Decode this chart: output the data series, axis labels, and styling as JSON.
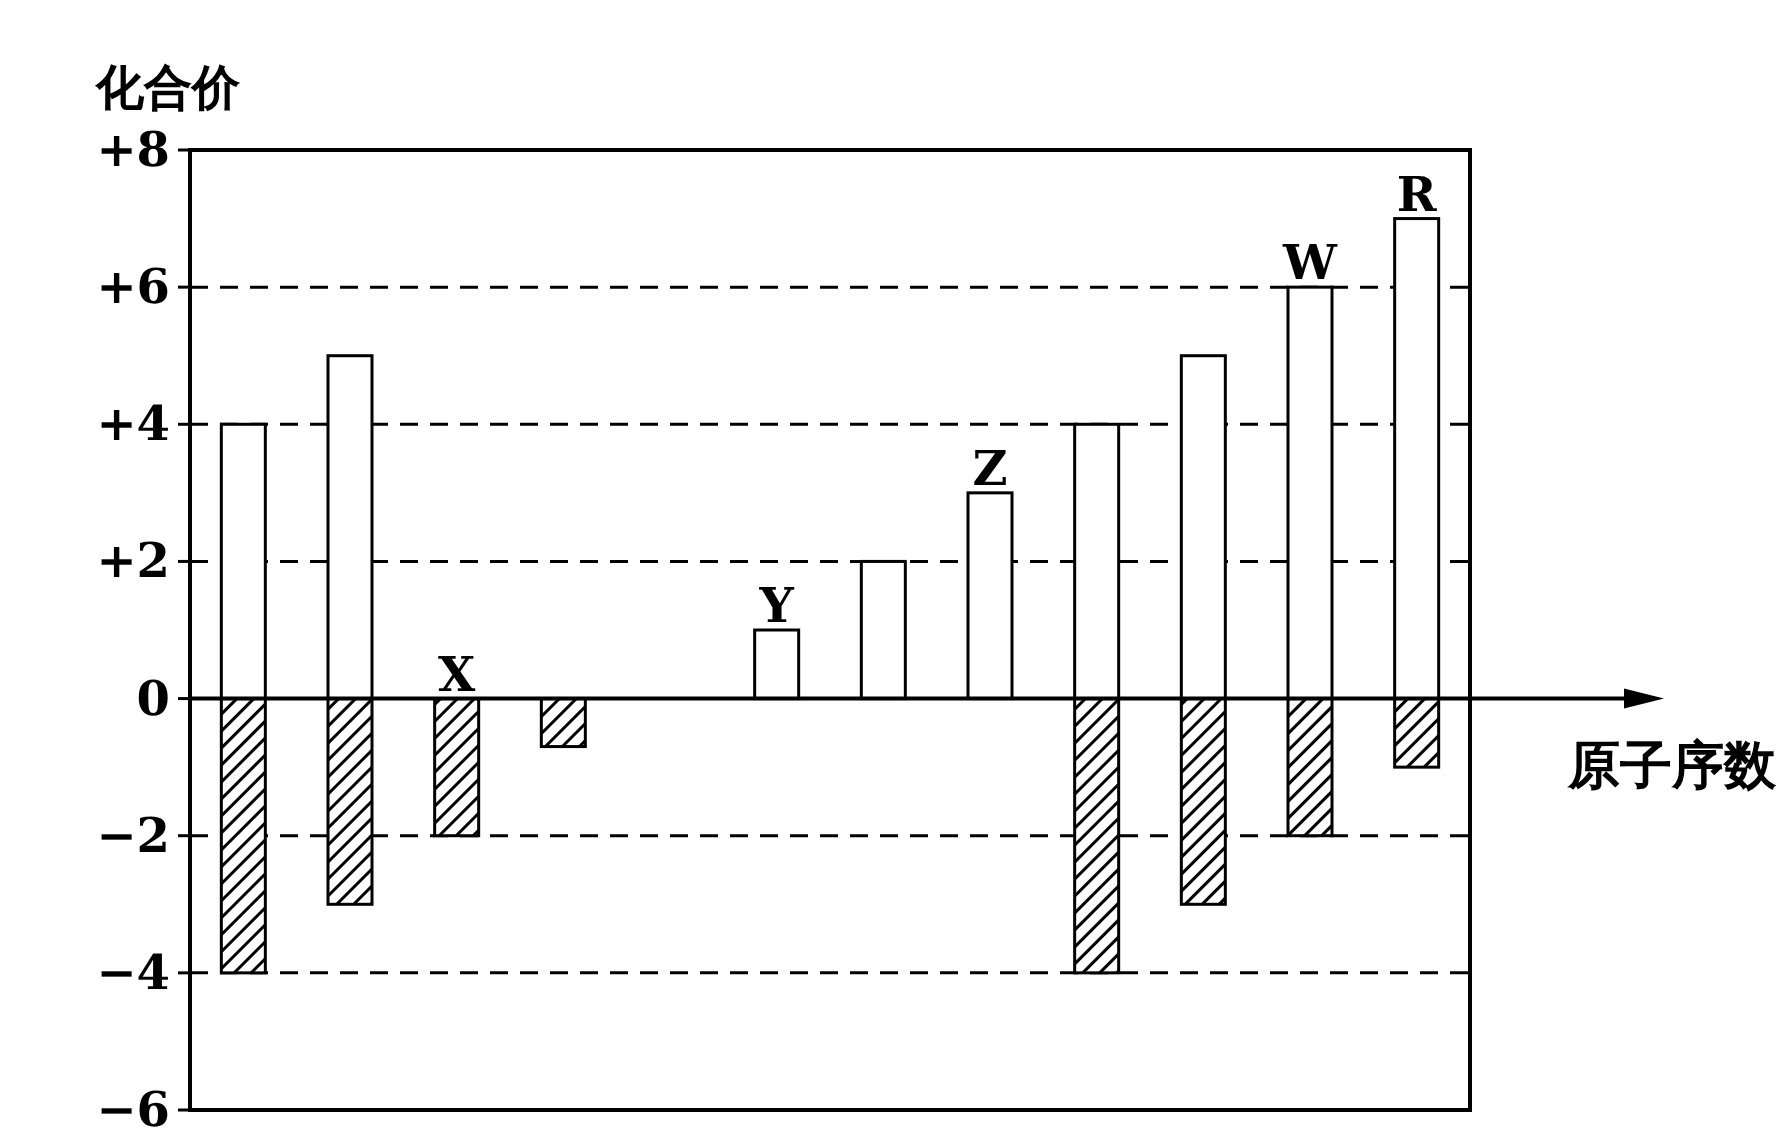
{
  "chart_data": {
    "type": "bar",
    "stacked": true,
    "xlabel": "原子序数",
    "ylabel": "化合价",
    "categories": [
      null,
      null,
      null,
      null,
      null,
      null,
      null,
      null,
      null,
      null,
      null,
      null
    ],
    "series": [
      {
        "color": "#ffffff",
        "values": [
          4,
          5,
          0,
          null,
          null,
          1,
          2,
          3,
          4,
          5,
          6,
          7
        ],
        "value_labels": [
          null,
          null,
          "X",
          null,
          null,
          "Y",
          null,
          "Z",
          null,
          null,
          "W",
          "R"
        ]
      },
      {
        "color": "#000000",
        "values": [
          -4,
          -3,
          -2,
          -0.7,
          null,
          null,
          null,
          null,
          -4,
          -3,
          -2,
          -1
        ]
      }
    ],
    "ylim": [
      -6,
      8
    ],
    "yticks": [
      {
        "value": 8,
        "label": "+8"
      },
      {
        "value": 6,
        "label": "+6"
      },
      {
        "value": 4,
        "label": "+4"
      },
      {
        "value": 2,
        "label": "+2"
      },
      0,
      {
        "value": -2,
        "label": "−2"
      },
      {
        "value": -4,
        "label": "−4"
      },
      {
        "value": -6,
        "label": "−6"
      }
    ],
    "grid": "y"
  }
}
